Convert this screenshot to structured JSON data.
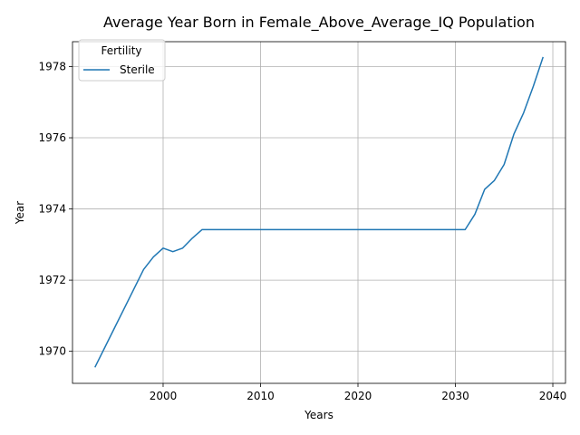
{
  "chart_data": {
    "type": "line",
    "title": "Average Year Born in Female_Above_Average_IQ Population",
    "xlabel": "Years",
    "ylabel": "Year",
    "xlim": [
      1990.7,
      2041.3
    ],
    "ylim": [
      1969.1,
      1978.7
    ],
    "xticks": [
      2000,
      2010,
      2020,
      2030,
      2040
    ],
    "yticks": [
      1970,
      1972,
      1974,
      1976,
      1978
    ],
    "grid": true,
    "legend": {
      "title": "Fertility",
      "placement": "top-left"
    },
    "series": [
      {
        "name": "Sterile",
        "color": "#1f77b4",
        "x": [
          1993,
          1994,
          1995,
          1996,
          1997,
          1998,
          1999,
          2000,
          2001,
          2002,
          2003,
          2004,
          2005,
          2006,
          2007,
          2008,
          2009,
          2010,
          2011,
          2012,
          2013,
          2014,
          2015,
          2016,
          2017,
          2018,
          2019,
          2020,
          2021,
          2022,
          2023,
          2024,
          2025,
          2026,
          2027,
          2028,
          2029,
          2030,
          2031,
          2032,
          2033,
          2034,
          2035,
          2036,
          2037,
          2038,
          2039
        ],
        "values": [
          1969.55,
          1970.1,
          1970.65,
          1971.2,
          1971.75,
          1972.3,
          1972.65,
          1972.9,
          1972.8,
          1972.9,
          1973.18,
          1973.42,
          1973.42,
          1973.42,
          1973.42,
          1973.42,
          1973.42,
          1973.42,
          1973.42,
          1973.42,
          1973.42,
          1973.42,
          1973.42,
          1973.42,
          1973.42,
          1973.42,
          1973.42,
          1973.42,
          1973.42,
          1973.42,
          1973.42,
          1973.42,
          1973.42,
          1973.42,
          1973.42,
          1973.42,
          1973.42,
          1973.42,
          1973.42,
          1973.85,
          1974.55,
          1974.8,
          1975.25,
          1976.1,
          1976.7,
          1977.45,
          1978.27
        ]
      }
    ]
  }
}
